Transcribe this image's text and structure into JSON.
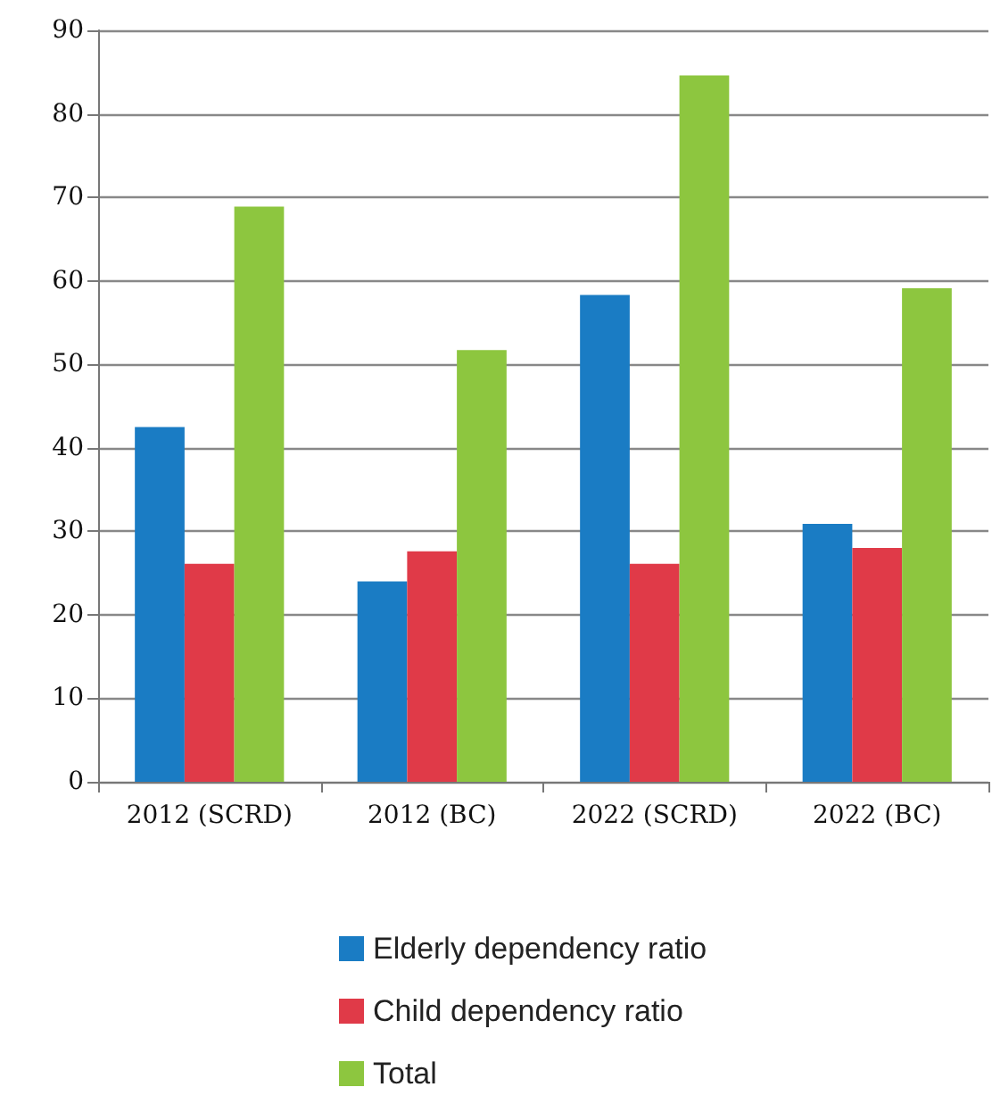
{
  "chart_data": {
    "type": "bar",
    "categories": [
      "2012 (SCRD)",
      "2012 (BC)",
      "2022 (SCRD)",
      "2022 (BC)"
    ],
    "series": [
      {
        "name": "Elderly dependency ratio",
        "color": "#1a7cc4",
        "values": [
          42.5,
          24.0,
          58.3,
          30.9
        ]
      },
      {
        "name": "Child dependency ratio",
        "color": "#e03a48",
        "values": [
          26.1,
          27.6,
          26.1,
          28.0
        ]
      },
      {
        "name": "Total",
        "color": "#8dc63f",
        "values": [
          68.9,
          51.7,
          84.6,
          59.1
        ]
      }
    ],
    "ylim": [
      0,
      90
    ],
    "yticks": [
      0,
      10,
      20,
      30,
      40,
      50,
      60,
      70,
      80,
      90
    ],
    "grid": "y",
    "legend": "bottom"
  }
}
